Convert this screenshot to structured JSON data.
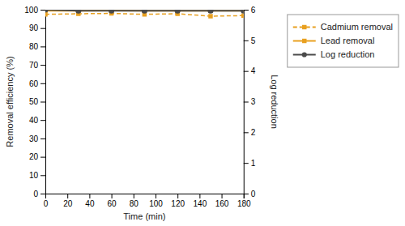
{
  "chart_data": {
    "type": "line",
    "x_label": "Time (min)",
    "y_label": "Removal efficiency (%)",
    "y2_label": "Log reduction",
    "x": [
      0,
      30,
      60,
      90,
      120,
      150,
      180
    ],
    "series": [
      {
        "name": "Cadmium removal",
        "color": "#E8A020",
        "line_style": "dashed",
        "marker": "square",
        "values": [
          97.5,
          97.8,
          98.0,
          97.5,
          97.8,
          96.5,
          96.8
        ]
      },
      {
        "name": "Lead removal",
        "color": "#E8A020",
        "line_style": "solid",
        "marker": "square",
        "values": [
          99.5,
          99.5,
          99.6,
          99.5,
          99.5,
          99.5,
          99.5
        ]
      },
      {
        "name": "Log reduction",
        "color": "#4a4a4a",
        "line_style": "solid",
        "marker": "circle",
        "axis": "y2",
        "values": [
          6.0,
          5.97,
          5.97,
          5.97,
          5.97,
          5.97,
          5.97
        ]
      }
    ],
    "xlim": [
      0,
      180
    ],
    "xticks": [
      0,
      20,
      40,
      60,
      80,
      100,
      120,
      140,
      160,
      180
    ],
    "ylim": [
      0,
      100
    ],
    "yticks": [
      0,
      10,
      20,
      30,
      40,
      50,
      60,
      70,
      80,
      90,
      100
    ],
    "y2lim": [
      0,
      6
    ],
    "y2ticks": [
      0,
      1,
      2,
      3,
      4,
      5,
      6
    ],
    "grid": false,
    "legend": "right"
  }
}
